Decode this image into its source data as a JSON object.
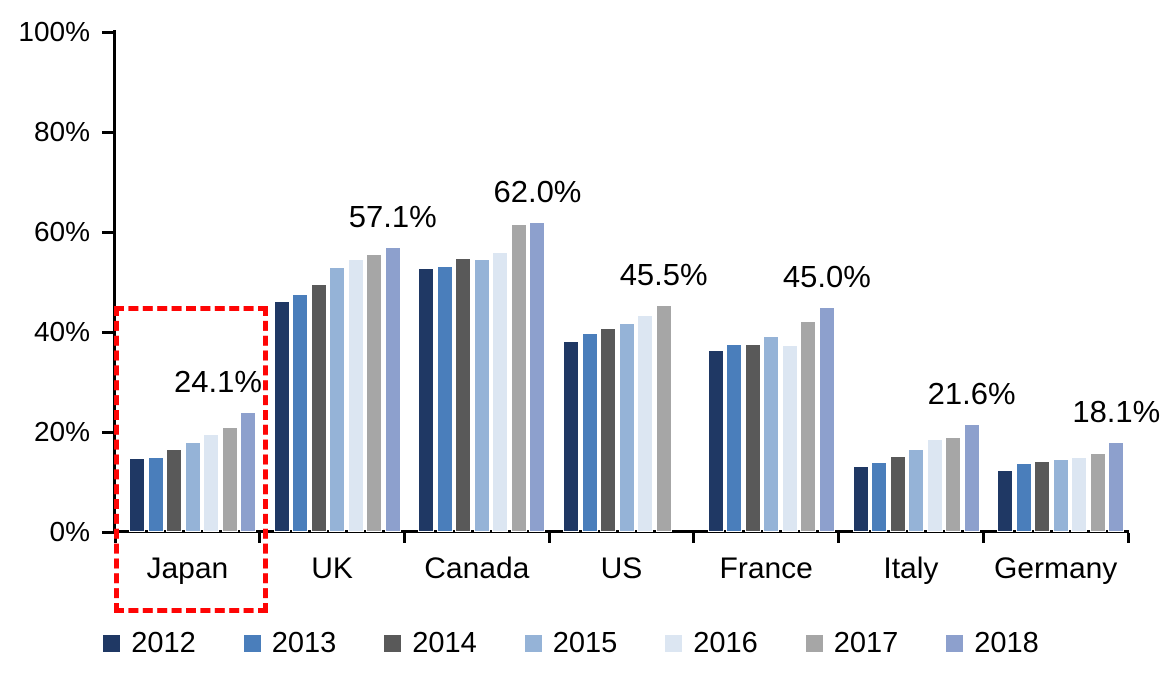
{
  "chart_data": {
    "type": "bar",
    "title": "",
    "categories": [
      "Japan",
      "UK",
      "Canada",
      "US",
      "France",
      "Italy",
      "Germany"
    ],
    "series": [
      {
        "name": "2012",
        "color": "#1f3864",
        "values": [
          14.9,
          46.2,
          52.9,
          38.2,
          36.4,
          13.2,
          12.4
        ]
      },
      {
        "name": "2013",
        "color": "#4a7ebb",
        "values": [
          15.1,
          47.7,
          53.3,
          39.9,
          37.6,
          14.0,
          13.9
        ]
      },
      {
        "name": "2014",
        "color": "#595959",
        "values": [
          16.7,
          49.7,
          54.8,
          40.8,
          37.6,
          15.2,
          14.2
        ]
      },
      {
        "name": "2015",
        "color": "#95b3d7",
        "values": [
          18.0,
          53.1,
          54.6,
          41.9,
          39.2,
          16.7,
          14.6
        ]
      },
      {
        "name": "2016",
        "color": "#dce6f2",
        "values": [
          19.7,
          54.6,
          56.0,
          43.4,
          37.4,
          18.6,
          15.1
        ]
      },
      {
        "name": "2017",
        "color": "#a6a6a6",
        "values": [
          21.0,
          55.6,
          61.7,
          45.5,
          42.3,
          19.0,
          15.8
        ]
      },
      {
        "name": "2018",
        "color": "#8da0cd",
        "values": [
          24.1,
          57.1,
          62.0,
          null,
          45.0,
          21.6,
          18.1
        ]
      }
    ],
    "data_labels": [
      {
        "category": "Japan",
        "text": "24.1%"
      },
      {
        "category": "UK",
        "text": "57.1%"
      },
      {
        "category": "Canada",
        "text": "62.0%"
      },
      {
        "category": "US",
        "text": "45.5%"
      },
      {
        "category": "France",
        "text": "45.0%"
      },
      {
        "category": "Italy",
        "text": "21.6%"
      },
      {
        "category": "Germany",
        "text": "18.1%"
      }
    ],
    "ylim": [
      0,
      100
    ],
    "yticks": [
      {
        "value": 0,
        "label": "0%"
      },
      {
        "value": 20,
        "label": "20%"
      },
      {
        "value": 40,
        "label": "40%"
      },
      {
        "value": 60,
        "label": "60%"
      },
      {
        "value": 80,
        "label": "80%"
      },
      {
        "value": 100,
        "label": "100%"
      }
    ],
    "grid": false,
    "legend_position": "bottom",
    "legend_labels": [
      "2012",
      "2013",
      "2014",
      "2015",
      "2016",
      "2017",
      "2018"
    ],
    "highlight": {
      "category": "Japan",
      "style": "red-dashed-box",
      "color": "#fe0505"
    },
    "axis_color": "#000000"
  }
}
